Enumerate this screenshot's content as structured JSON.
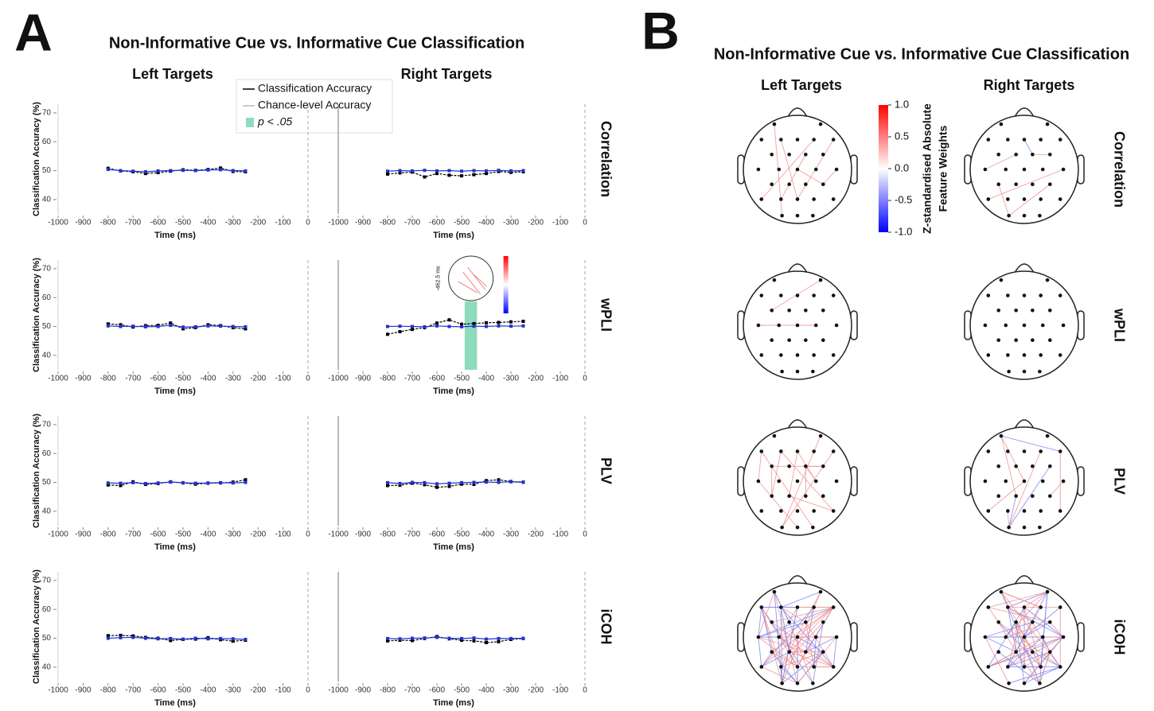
{
  "panel_a": {
    "label": "A",
    "title": "Non-Informative Cue vs. Informative Cue Classification",
    "columns": [
      "Left Targets",
      "Right Targets"
    ],
    "rows": [
      "Correlation",
      "wPLI",
      "PLV",
      "iCOH"
    ]
  },
  "panel_b": {
    "label": "B",
    "title": "Non-Informative Cue vs. Informative Cue Classification",
    "columns": [
      "Left Targets",
      "Right Targets"
    ],
    "rows": [
      "Correlation",
      "wPLI",
      "PLV",
      "iCOH"
    ],
    "colorbar": {
      "label_lines": [
        "Z-standardised Absolute",
        "Feature Weights"
      ],
      "lim": [
        -1,
        1
      ],
      "ticks": [
        {
          "value": 1,
          "label": "1.0"
        },
        {
          "value": 0.5,
          "label": "0.5"
        },
        {
          "value": 0,
          "label": "0.0"
        },
        {
          "value": -0.5,
          "label": "-0.5"
        },
        {
          "value": -1,
          "label": "-1.0"
        }
      ]
    }
  },
  "chart_data": [
    {
      "type": "line",
      "x": [
        -800,
        -750,
        -700,
        -650,
        -600,
        -550,
        -500,
        -450,
        -400,
        -350,
        -300,
        -250
      ],
      "xlim": [
        -1000,
        0
      ],
      "ylim": [
        35,
        73
      ],
      "xticks": [
        -1000,
        -900,
        -800,
        -700,
        -600,
        -500,
        -400,
        -300,
        -200,
        -100,
        0
      ],
      "yticks": [
        40,
        50,
        60,
        70
      ],
      "x_label": "Time (ms)",
      "y_label": "Classification Accuracy (%)",
      "series": [
        {
          "name": "Classification Accuracy",
          "color": "#000000",
          "values": [
            50.8,
            49.9,
            49.6,
            49.0,
            49.3,
            49.8,
            50.3,
            50.1,
            50.4,
            50.9,
            49.7,
            49.6
          ]
        },
        {
          "name": "Chance-level Accuracy",
          "color": "#2233cc",
          "values": [
            50.4,
            50.0,
            49.8,
            49.6,
            49.9,
            50.0,
            50.1,
            50.0,
            50.2,
            50.3,
            50.0,
            49.9
          ]
        }
      ]
    },
    {
      "type": "line",
      "x": [
        -800,
        -750,
        -700,
        -650,
        -600,
        -550,
        -500,
        -450,
        -400,
        -350,
        -300,
        -250
      ],
      "xlim": [
        -1000,
        0
      ],
      "ylim": [
        35,
        73
      ],
      "xticks": [
        -1000,
        -900,
        -800,
        -700,
        -600,
        -500,
        -400,
        -300,
        -200,
        -100,
        0
      ],
      "x_label": "Time (ms)",
      "series": [
        {
          "color": "#000000",
          "values": [
            48.8,
            49.2,
            49.5,
            47.8,
            49.0,
            48.4,
            48.2,
            48.6,
            49.0,
            49.7,
            49.4,
            49.6
          ]
        },
        {
          "color": "#2233cc",
          "values": [
            49.8,
            50.0,
            49.9,
            50.1,
            49.9,
            50.0,
            49.8,
            50.0,
            49.9,
            50.1,
            49.9,
            50.0
          ]
        }
      ]
    },
    {
      "type": "line",
      "x": [
        -800,
        -750,
        -700,
        -650,
        -600,
        -550,
        -500,
        -450,
        -400,
        -350,
        -300,
        -250
      ],
      "xlim": [
        -1000,
        0
      ],
      "ylim": [
        35,
        73
      ],
      "xticks": [
        -1000,
        -900,
        -800,
        -700,
        -600,
        -500,
        -400,
        -300,
        -200,
        -100,
        0
      ],
      "yticks": [
        40,
        50,
        60,
        70
      ],
      "x_label": "Time (ms)",
      "y_label": "Classification Accuracy (%)",
      "series": [
        {
          "color": "#000000",
          "values": [
            50.9,
            50.6,
            49.8,
            50.3,
            50.4,
            51.2,
            49.2,
            49.6,
            50.6,
            50.3,
            49.6,
            49.2
          ]
        },
        {
          "color": "#2233cc",
          "values": [
            50.2,
            50.0,
            50.1,
            49.9,
            50.0,
            50.4,
            49.8,
            49.9,
            50.2,
            50.1,
            50.0,
            49.9
          ]
        }
      ]
    },
    {
      "type": "line",
      "x": [
        -800,
        -750,
        -700,
        -650,
        -600,
        -550,
        -500,
        -450,
        -400,
        -350,
        -300,
        -250
      ],
      "xlim": [
        -1000,
        0
      ],
      "ylim": [
        35,
        73
      ],
      "xticks": [
        -1000,
        -900,
        -800,
        -700,
        -600,
        -500,
        -400,
        -300,
        -200,
        -100,
        0
      ],
      "x_label": "Time (ms)",
      "highlight": {
        "span": [
          -487.5,
          -437.5
        ],
        "label": "p < .05",
        "color": "#8edcbc"
      },
      "inset_label": "-462.5 ms",
      "series": [
        {
          "color": "#000000",
          "values": [
            47.3,
            48.2,
            49.0,
            49.6,
            51.2,
            52.3,
            50.8,
            51.0,
            51.3,
            51.4,
            51.6,
            51.8
          ]
        },
        {
          "color": "#2233cc",
          "values": [
            50.0,
            50.1,
            50.0,
            49.9,
            50.2,
            50.0,
            49.9,
            50.1,
            50.0,
            50.2,
            50.1,
            50.2
          ]
        }
      ]
    },
    {
      "type": "line",
      "x": [
        -800,
        -750,
        -700,
        -650,
        -600,
        -550,
        -500,
        -450,
        -400,
        -350,
        -300,
        -250
      ],
      "xlim": [
        -1000,
        0
      ],
      "ylim": [
        35,
        73
      ],
      "xticks": [
        -1000,
        -900,
        -800,
        -700,
        -600,
        -500,
        -400,
        -300,
        -200,
        -100,
        0
      ],
      "yticks": [
        40,
        50,
        60,
        70
      ],
      "x_label": "Time (ms)",
      "y_label": "Classification Accuracy (%)",
      "series": [
        {
          "color": "#000000",
          "values": [
            49.1,
            48.9,
            50.2,
            49.3,
            49.6,
            50.2,
            49.8,
            49.4,
            49.7,
            49.8,
            50.1,
            50.9
          ]
        },
        {
          "color": "#2233cc",
          "values": [
            49.8,
            49.7,
            49.9,
            49.6,
            49.8,
            50.1,
            49.9,
            49.7,
            49.8,
            49.9,
            49.8,
            50.0
          ]
        }
      ]
    },
    {
      "type": "line",
      "x": [
        -800,
        -750,
        -700,
        -650,
        -600,
        -550,
        -500,
        -450,
        -400,
        -350,
        -300,
        -250
      ],
      "xlim": [
        -1000,
        0
      ],
      "ylim": [
        35,
        73
      ],
      "xticks": [
        -1000,
        -900,
        -800,
        -700,
        -600,
        -500,
        -400,
        -300,
        -200,
        -100,
        0
      ],
      "x_label": "Time (ms)",
      "series": [
        {
          "color": "#000000",
          "values": [
            48.9,
            49.0,
            49.7,
            49.2,
            48.3,
            48.6,
            49.4,
            49.3,
            50.6,
            50.9,
            50.3,
            50.1
          ]
        },
        {
          "color": "#2233cc",
          "values": [
            49.9,
            49.6,
            50.0,
            49.9,
            49.5,
            49.7,
            49.9,
            50.0,
            50.1,
            50.0,
            50.2,
            50.0
          ]
        }
      ]
    },
    {
      "type": "line",
      "x": [
        -800,
        -750,
        -700,
        -650,
        -600,
        -550,
        -500,
        -450,
        -400,
        -350,
        -300,
        -250
      ],
      "xlim": [
        -1000,
        0
      ],
      "ylim": [
        35,
        73
      ],
      "xticks": [
        -1000,
        -900,
        -800,
        -700,
        -600,
        -500,
        -400,
        -300,
        -200,
        -100,
        0
      ],
      "yticks": [
        40,
        50,
        60,
        70
      ],
      "x_label": "Time (ms)",
      "y_label": "Classification Accuracy (%)",
      "series": [
        {
          "color": "#000000",
          "values": [
            50.9,
            51.0,
            50.8,
            50.3,
            50.0,
            49.2,
            49.6,
            49.7,
            50.2,
            49.5,
            49.0,
            49.3
          ]
        },
        {
          "color": "#2233cc",
          "values": [
            50.0,
            50.2,
            50.3,
            50.0,
            49.8,
            49.9,
            49.7,
            50.0,
            49.8,
            49.9,
            49.8,
            49.6
          ]
        }
      ]
    },
    {
      "type": "line",
      "x": [
        -800,
        -750,
        -700,
        -650,
        -600,
        -550,
        -500,
        -450,
        -400,
        -350,
        -300,
        -250
      ],
      "xlim": [
        -1000,
        0
      ],
      "ylim": [
        35,
        73
      ],
      "xticks": [
        -1000,
        -900,
        -800,
        -700,
        -600,
        -500,
        -400,
        -300,
        -200,
        -100,
        0
      ],
      "x_label": "Time (ms)",
      "series": [
        {
          "color": "#000000",
          "values": [
            49.1,
            49.3,
            49.2,
            49.9,
            50.6,
            49.8,
            49.3,
            49.1,
            48.5,
            48.8,
            49.6,
            49.9
          ]
        },
        {
          "color": "#2233cc",
          "values": [
            49.9,
            49.8,
            50.0,
            50.1,
            50.3,
            50.0,
            49.9,
            50.1,
            49.7,
            49.9,
            49.9,
            50.0
          ]
        }
      ]
    }
  ]
}
